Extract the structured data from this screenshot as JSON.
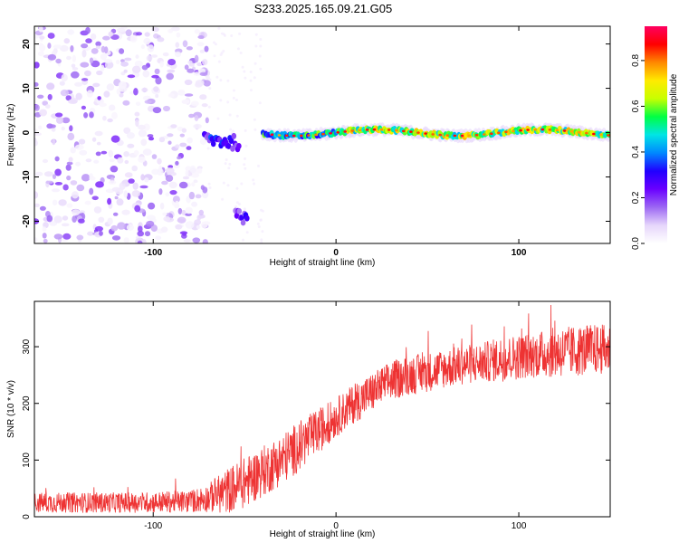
{
  "figure_title": "S233.2025.165.09.21.G05",
  "chart_data": [
    {
      "type": "heatmap",
      "xlabel": "Height of straight line (km)",
      "ylabel": "Frequency (Hz)",
      "xlim": [
        -165,
        150
      ],
      "ylim": [
        -25,
        24
      ],
      "xticks": [
        -100,
        0,
        100
      ],
      "yticks": [
        -20,
        -10,
        0,
        10,
        20
      ],
      "colorbar": {
        "label": "Normalized spectral amplitude",
        "range": [
          0,
          0.95
        ],
        "ticks": [
          0.0,
          0.2,
          0.4,
          0.6,
          0.8
        ],
        "colormap": [
          "#ffffff",
          "#e6d6fb",
          "#9c67f3",
          "#6a00ff",
          "#2000ff",
          "#0088ff",
          "#00e5e5",
          "#00ff44",
          "#c8ff00",
          "#ffea00",
          "#ff8800",
          "#ff0000",
          "#ff0060"
        ]
      },
      "features": [
        {
          "name": "noise",
          "x_range": [
            -165,
            -70
          ],
          "f_range": [
            -25,
            24
          ],
          "amplitude": 0.12
        },
        {
          "name": "blob_a",
          "x_range": [
            -72,
            -53
          ],
          "f_center": -2,
          "amplitude": 0.3
        },
        {
          "name": "blob_b",
          "x_range": [
            -55,
            -48
          ],
          "f_center": -19,
          "amplitude": 0.3
        },
        {
          "name": "carrier",
          "x_range": [
            -40,
            150
          ],
          "f_center": 0,
          "amplitude": 0.75
        }
      ]
    },
    {
      "type": "line",
      "xlabel": "Height of straight line (km)",
      "ylabel": "SNR (10 * v/v)",
      "xlim": [
        -165,
        150
      ],
      "ylim": [
        0,
        380
      ],
      "xticks": [
        -100,
        0,
        100
      ],
      "yticks": [
        0,
        100,
        200,
        300
      ],
      "color": "#ee3333",
      "x": [
        -165,
        -140,
        -110,
        -80,
        -70,
        -60,
        -50,
        -40,
        -30,
        -20,
        -10,
        0,
        10,
        20,
        30,
        40,
        50,
        60,
        70,
        80,
        90,
        100,
        110,
        120,
        130,
        140,
        150
      ],
      "y": [
        25,
        25,
        25,
        27,
        33,
        45,
        60,
        80,
        100,
        125,
        150,
        175,
        200,
        220,
        240,
        250,
        255,
        262,
        268,
        272,
        278,
        282,
        286,
        290,
        292,
        295,
        295
      ],
      "noise_amplitude": [
        18,
        18,
        18,
        20,
        25,
        40,
        45,
        45,
        45,
        45,
        40,
        35,
        35,
        35,
        35,
        35,
        35,
        35,
        35,
        35,
        40,
        40,
        40,
        45,
        45,
        45,
        45
      ]
    }
  ]
}
